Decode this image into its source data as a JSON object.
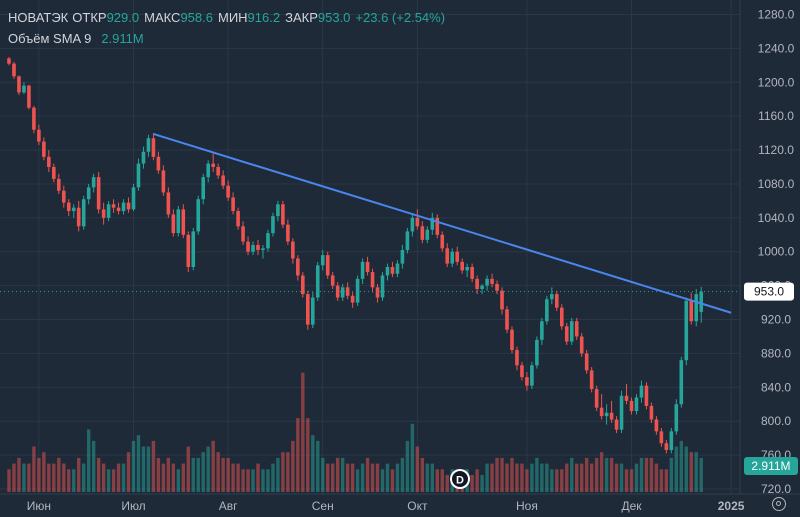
{
  "legend": {
    "symbol": "НОВАТЭК",
    "open_label": "ОТКР",
    "open": "929.0",
    "high_label": "МАКС",
    "high": "958.6",
    "low_label": "МИН",
    "low": "916.2",
    "close_label": "ЗАКР",
    "close": "953.0",
    "change": "+23.6 (+2.54%)",
    "volume_label": "Объём SMA 9",
    "volume_value": "2.911M"
  },
  "colors": {
    "background": "#1e2a38",
    "up": "#26a69a",
    "down": "#ef5350",
    "trendline": "#4a86f0",
    "price_label_bg": "#ffffff",
    "volume_label_bg": "#26a69a"
  },
  "last_price_label": "953.0",
  "volume_label": "2.911M",
  "logo_icon": "tradingview-logo-icon",
  "chart_data": {
    "type": "candlestick",
    "ylim": [
      720,
      1290
    ],
    "y_ticks": [
      "1280.0",
      "1240.0",
      "1200.0",
      "1160.0",
      "1120.0",
      "1080.0",
      "1040.0",
      "1000.0",
      "960.0",
      "920.0",
      "880.0",
      "840.0",
      "800.0",
      "760.0",
      "720.0"
    ],
    "x_ticks": [
      "Июн",
      "Июл",
      "Авг",
      "Сен",
      "Окт",
      "Ноя",
      "Дек",
      "2025"
    ],
    "x_tick_index": [
      6,
      25,
      44,
      63,
      82,
      104,
      125,
      145
    ],
    "grid": true,
    "last_price": 953.0,
    "trendline": {
      "from": {
        "index": 29,
        "price": 1139
      },
      "to": {
        "index": 145,
        "price": 928
      }
    },
    "candles": [
      [
        1228,
        1230,
        1220,
        1222
      ],
      [
        1222,
        1224,
        1204,
        1207
      ],
      [
        1207,
        1208,
        1185,
        1188
      ],
      [
        1188,
        1200,
        1186,
        1196
      ],
      [
        1196,
        1197,
        1168,
        1170
      ],
      [
        1170,
        1172,
        1140,
        1144
      ],
      [
        1144,
        1150,
        1126,
        1130
      ],
      [
        1130,
        1135,
        1108,
        1112
      ],
      [
        1112,
        1120,
        1094,
        1100
      ],
      [
        1100,
        1104,
        1082,
        1086
      ],
      [
        1086,
        1092,
        1068,
        1072
      ],
      [
        1072,
        1078,
        1052,
        1058
      ],
      [
        1058,
        1062,
        1042,
        1048
      ],
      [
        1048,
        1056,
        1040,
        1052
      ],
      [
        1052,
        1060,
        1024,
        1030
      ],
      [
        1030,
        1066,
        1026,
        1062
      ],
      [
        1062,
        1080,
        1056,
        1076
      ],
      [
        1076,
        1092,
        1070,
        1088
      ],
      [
        1088,
        1094,
        1045,
        1050
      ],
      [
        1050,
        1058,
        1032,
        1040
      ],
      [
        1040,
        1060,
        1036,
        1056
      ],
      [
        1056,
        1062,
        1046,
        1052
      ],
      [
        1052,
        1058,
        1044,
        1048
      ],
      [
        1048,
        1062,
        1044,
        1058
      ],
      [
        1058,
        1064,
        1046,
        1050
      ],
      [
        1050,
        1080,
        1048,
        1076
      ],
      [
        1076,
        1110,
        1072,
        1104
      ],
      [
        1104,
        1124,
        1098,
        1118
      ],
      [
        1118,
        1138,
        1112,
        1134
      ],
      [
        1134,
        1140,
        1108,
        1112
      ],
      [
        1112,
        1118,
        1092,
        1096
      ],
      [
        1096,
        1102,
        1066,
        1070
      ],
      [
        1070,
        1076,
        1040,
        1044
      ],
      [
        1044,
        1050,
        1018,
        1022
      ],
      [
        1022,
        1054,
        1018,
        1050
      ],
      [
        1050,
        1056,
        1016,
        1020
      ],
      [
        1020,
        1024,
        976,
        982
      ],
      [
        982,
        1028,
        978,
        1024
      ],
      [
        1024,
        1066,
        1020,
        1062
      ],
      [
        1062,
        1092,
        1056,
        1088
      ],
      [
        1088,
        1108,
        1082,
        1104
      ],
      [
        1104,
        1116,
        1094,
        1100
      ],
      [
        1100,
        1104,
        1086,
        1090
      ],
      [
        1090,
        1096,
        1074,
        1078
      ],
      [
        1078,
        1084,
        1060,
        1064
      ],
      [
        1064,
        1070,
        1044,
        1048
      ],
      [
        1048,
        1052,
        1026,
        1030
      ],
      [
        1030,
        1036,
        1008,
        1012
      ],
      [
        1012,
        1018,
        996,
        1000
      ],
      [
        1000,
        1012,
        996,
        1008
      ],
      [
        1008,
        1014,
        996,
        1002
      ],
      [
        1002,
        1008,
        992,
        1004
      ],
      [
        1004,
        1026,
        1000,
        1022
      ],
      [
        1022,
        1046,
        1018,
        1042
      ],
      [
        1042,
        1060,
        1036,
        1056
      ],
      [
        1056,
        1060,
        1028,
        1032
      ],
      [
        1032,
        1038,
        1008,
        1012
      ],
      [
        1012,
        1016,
        986,
        992
      ],
      [
        992,
        996,
        966,
        972
      ],
      [
        972,
        976,
        946,
        950
      ],
      [
        950,
        954,
        908,
        914
      ],
      [
        914,
        952,
        910,
        946
      ],
      [
        946,
        988,
        942,
        984
      ],
      [
        984,
        1002,
        978,
        996
      ],
      [
        996,
        1000,
        968,
        972
      ],
      [
        972,
        976,
        956,
        960
      ],
      [
        960,
        964,
        942,
        946
      ],
      [
        946,
        962,
        942,
        958
      ],
      [
        958,
        964,
        944,
        948
      ],
      [
        948,
        952,
        934,
        940
      ],
      [
        940,
        972,
        936,
        968
      ],
      [
        968,
        992,
        962,
        988
      ],
      [
        988,
        994,
        972,
        976
      ],
      [
        976,
        980,
        952,
        958
      ],
      [
        958,
        962,
        940,
        946
      ],
      [
        946,
        976,
        942,
        972
      ],
      [
        972,
        986,
        966,
        982
      ],
      [
        982,
        988,
        970,
        974
      ],
      [
        974,
        990,
        970,
        986
      ],
      [
        986,
        1008,
        980,
        1002
      ],
      [
        1002,
        1028,
        998,
        1024
      ],
      [
        1024,
        1044,
        1018,
        1040
      ],
      [
        1040,
        1050,
        1026,
        1030
      ],
      [
        1030,
        1036,
        1010,
        1014
      ],
      [
        1014,
        1030,
        1010,
        1026
      ],
      [
        1026,
        1046,
        1020,
        1040
      ],
      [
        1040,
        1044,
        1016,
        1020
      ],
      [
        1020,
        1024,
        1000,
        1004
      ],
      [
        1004,
        1010,
        982,
        986
      ],
      [
        986,
        1004,
        982,
        1000
      ],
      [
        1000,
        1006,
        984,
        988
      ],
      [
        988,
        992,
        974,
        978
      ],
      [
        978,
        986,
        970,
        982
      ],
      [
        982,
        986,
        964,
        968
      ],
      [
        968,
        972,
        950,
        956
      ],
      [
        956,
        962,
        950,
        960
      ],
      [
        960,
        972,
        954,
        968
      ],
      [
        968,
        974,
        958,
        962
      ],
      [
        962,
        966,
        950,
        954
      ],
      [
        954,
        958,
        926,
        932
      ],
      [
        932,
        936,
        904,
        908
      ],
      [
        908,
        912,
        880,
        884
      ],
      [
        884,
        888,
        860,
        866
      ],
      [
        866,
        870,
        848,
        852
      ],
      [
        852,
        858,
        836,
        842
      ],
      [
        842,
        870,
        838,
        866
      ],
      [
        866,
        900,
        862,
        896
      ],
      [
        896,
        922,
        890,
        918
      ],
      [
        918,
        948,
        914,
        944
      ],
      [
        944,
        958,
        938,
        950
      ],
      [
        950,
        954,
        930,
        934
      ],
      [
        934,
        938,
        908,
        912
      ],
      [
        912,
        916,
        890,
        894
      ],
      [
        894,
        922,
        890,
        918
      ],
      [
        918,
        922,
        896,
        900
      ],
      [
        900,
        904,
        876,
        880
      ],
      [
        880,
        884,
        856,
        860
      ],
      [
        860,
        864,
        834,
        838
      ],
      [
        838,
        842,
        812,
        816
      ],
      [
        816,
        832,
        802,
        806
      ],
      [
        806,
        820,
        796,
        810
      ],
      [
        810,
        824,
        798,
        802
      ],
      [
        802,
        806,
        786,
        790
      ],
      [
        790,
        836,
        786,
        830
      ],
      [
        830,
        844,
        820,
        824
      ],
      [
        824,
        828,
        808,
        812
      ],
      [
        812,
        832,
        808,
        828
      ],
      [
        828,
        848,
        822,
        842
      ],
      [
        842,
        846,
        814,
        818
      ],
      [
        818,
        822,
        798,
        802
      ],
      [
        802,
        806,
        784,
        788
      ],
      [
        788,
        792,
        770,
        774
      ],
      [
        774,
        778,
        762,
        766
      ],
      [
        766,
        792,
        762,
        788
      ],
      [
        788,
        826,
        784,
        820
      ],
      [
        820,
        876,
        816,
        872
      ],
      [
        872,
        946,
        866,
        942
      ],
      [
        942,
        952,
        914,
        918
      ],
      [
        918,
        956,
        912,
        950
      ],
      [
        929,
        958.6,
        916.2,
        953
      ]
    ],
    "volume": [
      0.4,
      0.5,
      0.6,
      0.5,
      0.5,
      0.8,
      0.6,
      0.7,
      0.5,
      0.5,
      0.6,
      0.5,
      0.4,
      0.4,
      0.6,
      0.5,
      1.1,
      0.9,
      0.6,
      0.5,
      0.4,
      0.4,
      0.5,
      0.5,
      0.7,
      0.9,
      1.0,
      0.8,
      0.8,
      0.9,
      0.6,
      0.5,
      0.6,
      0.5,
      0.4,
      0.5,
      0.8,
      0.6,
      0.6,
      0.7,
      0.8,
      0.9,
      0.7,
      0.6,
      0.6,
      0.5,
      0.5,
      0.4,
      0.4,
      0.4,
      0.5,
      0.4,
      0.4,
      0.5,
      0.6,
      0.7,
      0.7,
      0.9,
      1.3,
      2.1,
      1.3,
      1.0,
      0.9,
      0.6,
      0.5,
      0.5,
      0.6,
      0.6,
      0.5,
      0.5,
      0.4,
      0.5,
      0.6,
      0.5,
      0.5,
      0.4,
      0.5,
      0.4,
      0.5,
      0.6,
      0.9,
      1.2,
      0.8,
      0.6,
      0.5,
      0.5,
      0.4,
      0.4,
      0.3,
      0.4,
      0.4,
      0.3,
      0.4,
      0.3,
      0.4,
      0.3,
      0.5,
      0.5,
      0.6,
      0.6,
      0.5,
      0.6,
      0.5,
      0.5,
      0.4,
      0.5,
      0.6,
      0.5,
      0.5,
      0.4,
      0.4,
      0.4,
      0.5,
      0.6,
      0.5,
      0.5,
      0.6,
      0.5,
      0.6,
      0.7,
      0.6,
      0.6,
      0.5,
      0.5,
      0.4,
      0.4,
      0.5,
      0.6,
      0.6,
      0.6,
      0.5,
      0.4,
      0.4,
      0.6,
      0.8,
      0.9,
      0.8,
      0.7,
      0.7,
      0.6
    ]
  }
}
